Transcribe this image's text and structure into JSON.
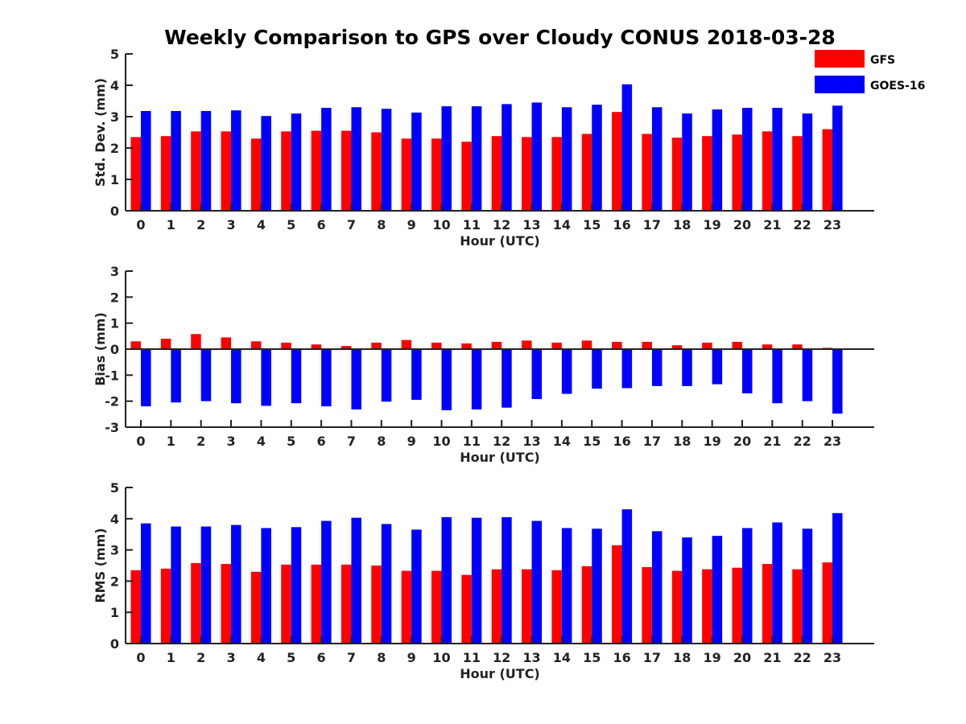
{
  "title": "Weekly Comparison to GPS over Cloudy CONUS 2018-03-28",
  "colors": {
    "GFS": "#ff0000",
    "GOES-16": "#0000ff"
  },
  "legend": {
    "placement": "top-right",
    "entries": [
      "GFS",
      "GOES-16"
    ]
  },
  "chart_data": [
    {
      "type": "bar",
      "categories": [
        "0",
        "1",
        "2",
        "3",
        "4",
        "5",
        "6",
        "7",
        "8",
        "9",
        "10",
        "11",
        "12",
        "13",
        "14",
        "15",
        "16",
        "17",
        "18",
        "19",
        "20",
        "21",
        "22",
        "23"
      ],
      "xlabel": "Hour (UTC)",
      "ylabel": "Std. Dev. (mm)",
      "ylim": [
        0,
        5
      ],
      "yticks": [
        "0",
        "1",
        "2",
        "3",
        "4",
        "5"
      ],
      "grid": false,
      "series": [
        {
          "name": "GFS",
          "values": [
            2.35,
            2.38,
            2.53,
            2.53,
            2.3,
            2.53,
            2.55,
            2.55,
            2.5,
            2.3,
            2.3,
            2.2,
            2.38,
            2.35,
            2.35,
            2.45,
            3.15,
            2.45,
            2.33,
            2.38,
            2.43,
            2.53,
            2.38,
            2.6
          ]
        },
        {
          "name": "GOES-16",
          "values": [
            3.18,
            3.18,
            3.18,
            3.2,
            3.02,
            3.1,
            3.28,
            3.3,
            3.25,
            3.13,
            3.33,
            3.33,
            3.4,
            3.45,
            3.3,
            3.38,
            4.03,
            3.3,
            3.1,
            3.23,
            3.28,
            3.28,
            3.1,
            3.35
          ]
        }
      ]
    },
    {
      "type": "bar",
      "categories": [
        "0",
        "1",
        "2",
        "3",
        "4",
        "5",
        "6",
        "7",
        "8",
        "9",
        "10",
        "11",
        "12",
        "13",
        "14",
        "15",
        "16",
        "17",
        "18",
        "19",
        "20",
        "21",
        "22",
        "23"
      ],
      "xlabel": "Hour (UTC)",
      "ylabel": "Bias (mm)",
      "ylim": [
        -3,
        3
      ],
      "yticks": [
        "-3",
        "-2",
        "-1",
        "0",
        "1",
        "2",
        "3"
      ],
      "grid": false,
      "series": [
        {
          "name": "GFS",
          "values": [
            0.3,
            0.4,
            0.58,
            0.45,
            0.3,
            0.25,
            0.18,
            0.12,
            0.25,
            0.35,
            0.25,
            0.22,
            0.28,
            0.33,
            0.25,
            0.33,
            0.28,
            0.28,
            0.15,
            0.25,
            0.28,
            0.18,
            0.18,
            0.05
          ]
        },
        {
          "name": "GOES-16",
          "values": [
            -2.2,
            -2.05,
            -2.0,
            -2.08,
            -2.18,
            -2.08,
            -2.2,
            -2.32,
            -2.02,
            -1.95,
            -2.35,
            -2.32,
            -2.25,
            -1.92,
            -1.72,
            -1.52,
            -1.5,
            -1.42,
            -1.42,
            -1.35,
            -1.7,
            -2.08,
            -2.0,
            -2.48
          ]
        }
      ]
    },
    {
      "type": "bar",
      "categories": [
        "0",
        "1",
        "2",
        "3",
        "4",
        "5",
        "6",
        "7",
        "8",
        "9",
        "10",
        "11",
        "12",
        "13",
        "14",
        "15",
        "16",
        "17",
        "18",
        "19",
        "20",
        "21",
        "22",
        "23"
      ],
      "xlabel": "Hour (UTC)",
      "ylabel": "RMS (mm)",
      "ylim": [
        0,
        5
      ],
      "yticks": [
        "0",
        "1",
        "2",
        "3",
        "4",
        "5"
      ],
      "grid": false,
      "series": [
        {
          "name": "GFS",
          "values": [
            2.35,
            2.4,
            2.58,
            2.55,
            2.3,
            2.53,
            2.53,
            2.53,
            2.5,
            2.33,
            2.33,
            2.2,
            2.38,
            2.38,
            2.35,
            2.48,
            3.15,
            2.45,
            2.33,
            2.38,
            2.43,
            2.55,
            2.38,
            2.6
          ]
        },
        {
          "name": "GOES-16",
          "values": [
            3.85,
            3.75,
            3.75,
            3.8,
            3.7,
            3.73,
            3.93,
            4.03,
            3.83,
            3.65,
            4.05,
            4.03,
            4.05,
            3.93,
            3.7,
            3.68,
            4.3,
            3.6,
            3.4,
            3.45,
            3.7,
            3.88,
            3.68,
            4.18
          ]
        }
      ]
    }
  ]
}
